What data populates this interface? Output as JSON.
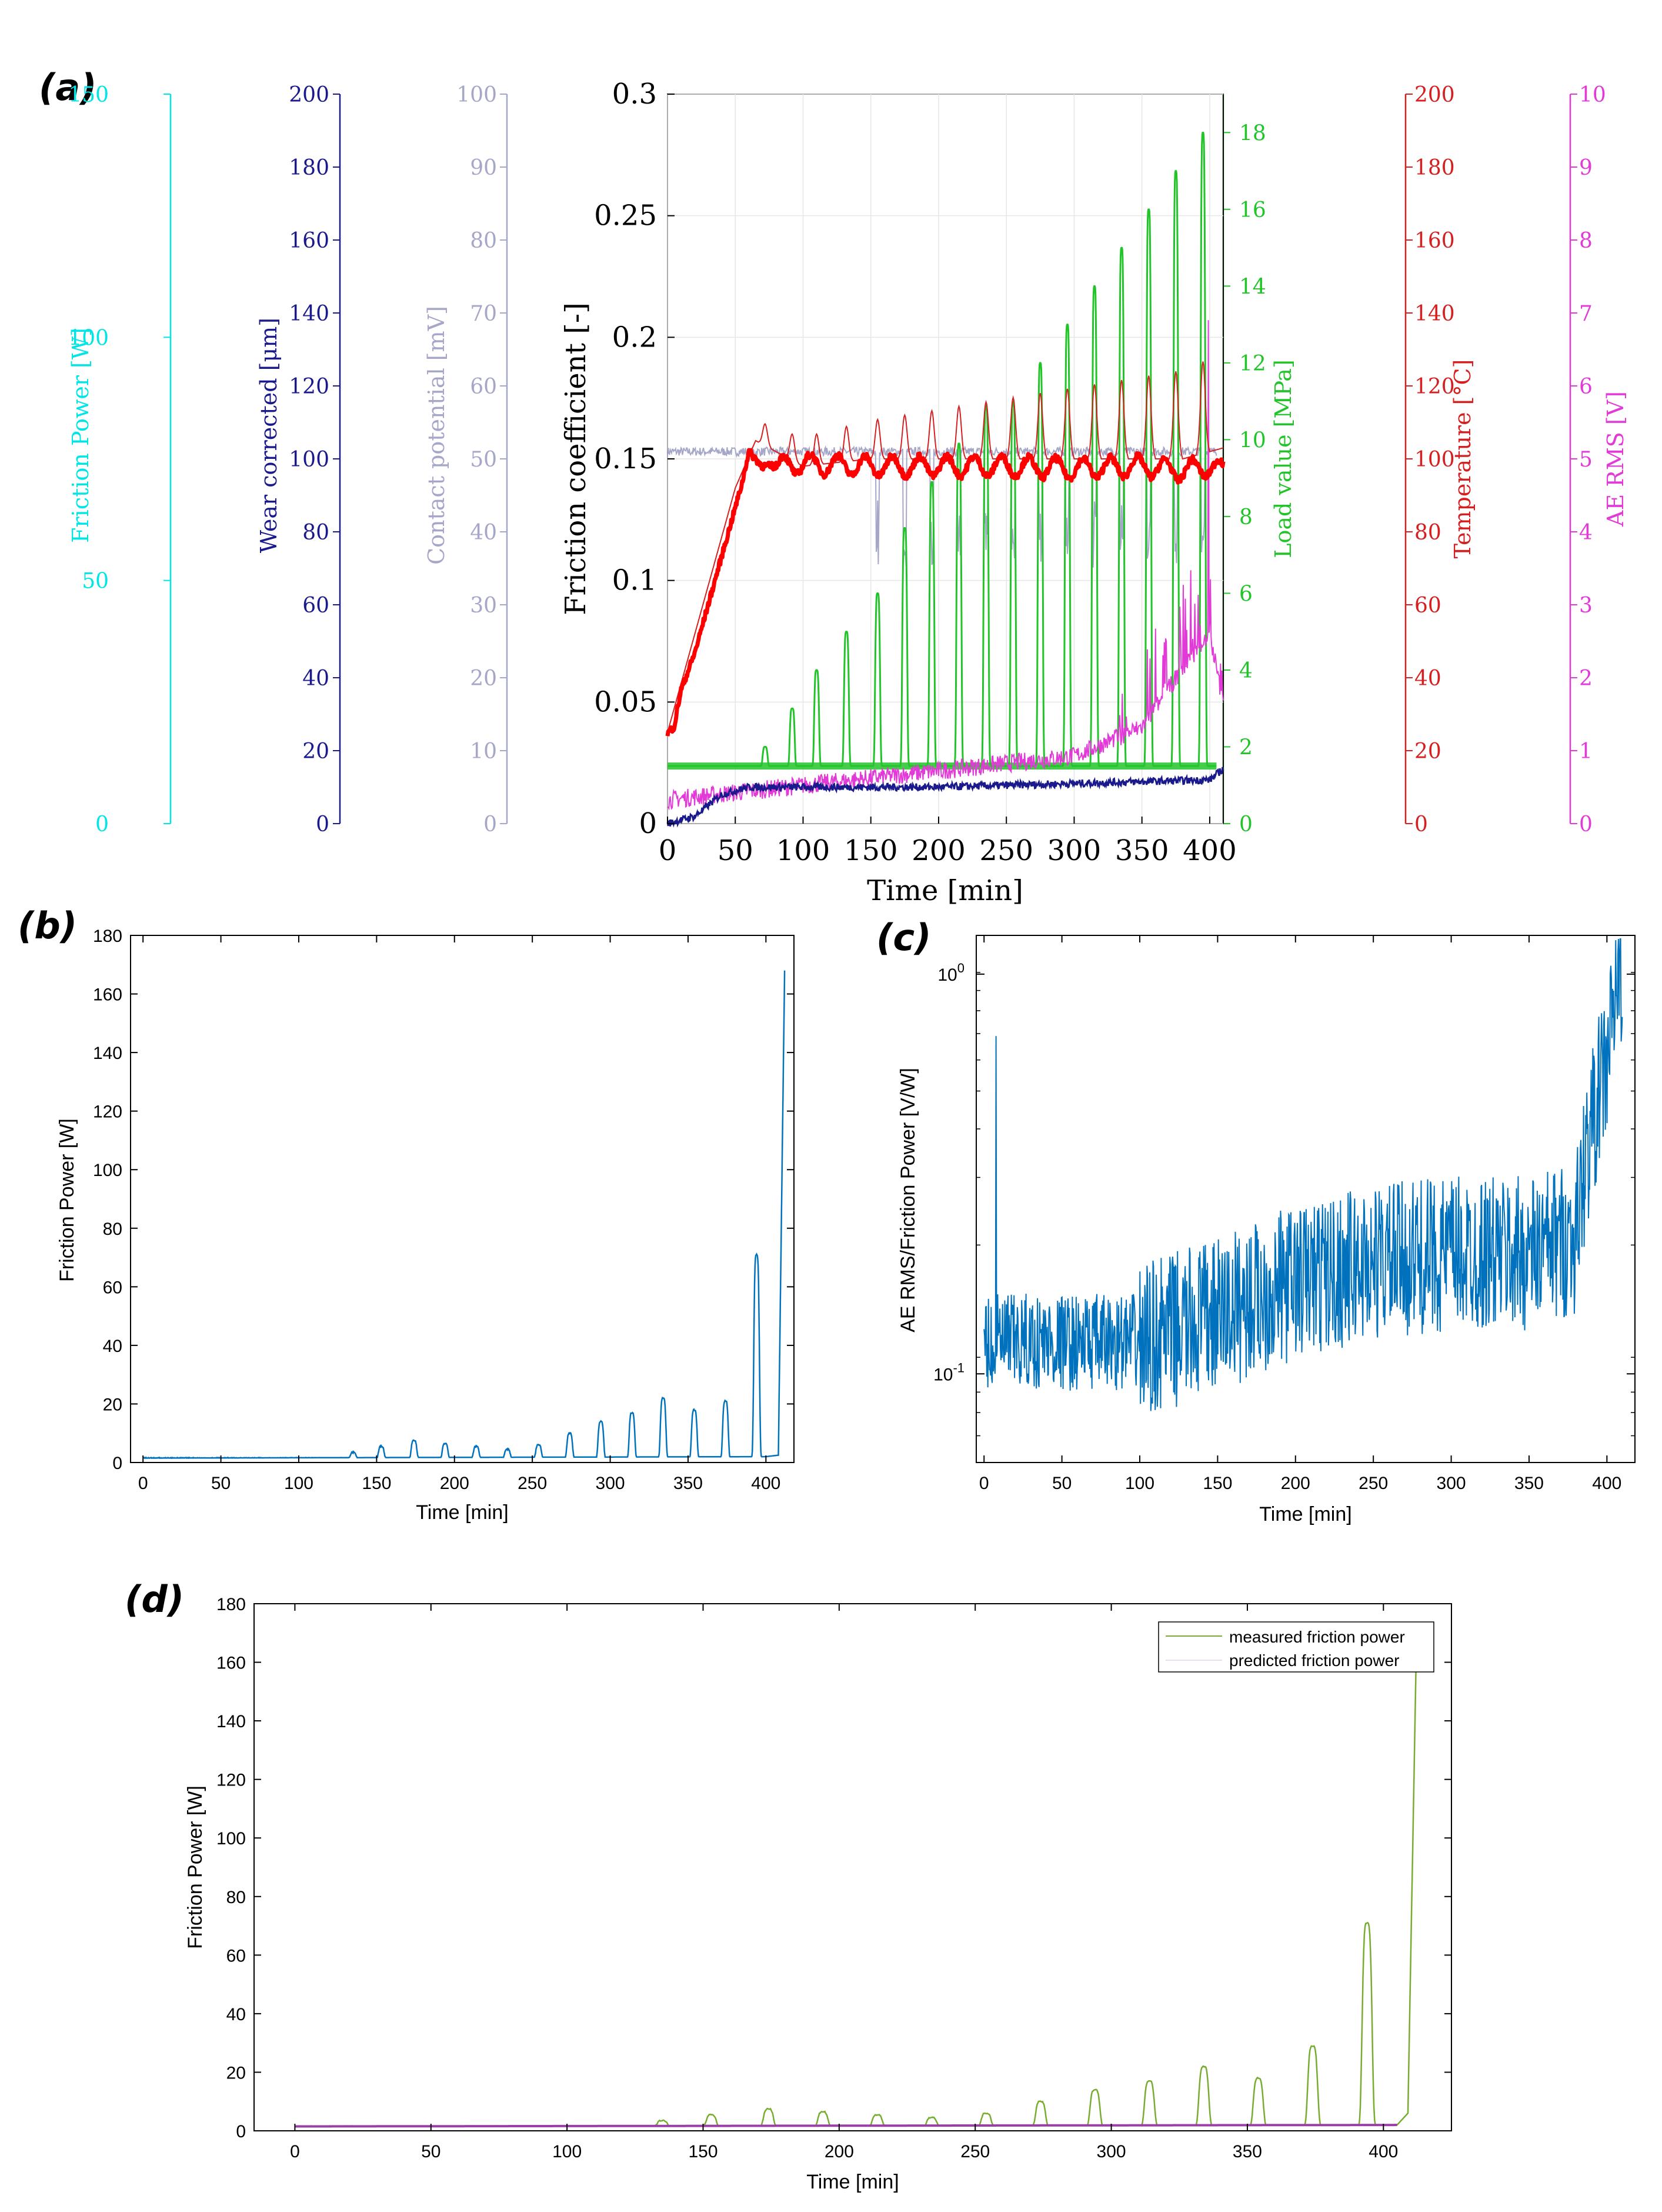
{
  "panels": {
    "a": {
      "label": "(a)"
    },
    "b": {
      "label": "(b)"
    },
    "c": {
      "label": "(c)"
    },
    "d": {
      "label": "(d)"
    }
  },
  "chart_data": [
    {
      "id": "a",
      "type": "line",
      "title": "",
      "xlabel": "Time [min]",
      "xlim": [
        0,
        410
      ],
      "xticks": [
        0,
        50,
        100,
        150,
        200,
        250,
        300,
        350,
        400
      ],
      "grid": true,
      "main_axis": {
        "label": "Friction coefficient [-]",
        "ylim": [
          0,
          0.3
        ],
        "ticks": [
          "0",
          "0.05",
          "0.1",
          "0.15",
          "0.2",
          "0.25",
          "0.3"
        ],
        "color": "#000000"
      },
      "extra_axes": [
        {
          "name": "friction_power",
          "label": "Friction Power [W]",
          "ylim": [
            0,
            150
          ],
          "ticks": [
            0,
            50,
            100,
            150
          ],
          "color": "#00e5e5",
          "side": "left"
        },
        {
          "name": "wear",
          "label": "Wear corrected [μm]",
          "ylim": [
            0,
            200
          ],
          "ticks": [
            0,
            20,
            40,
            60,
            80,
            100,
            120,
            140,
            160,
            180,
            200
          ],
          "color": "#1a1a8c",
          "side": "left"
        },
        {
          "name": "contact_potential",
          "label": "Contact potential [mV]",
          "ylim": [
            0,
            100
          ],
          "ticks": [
            0,
            10,
            20,
            30,
            40,
            50,
            60,
            70,
            80,
            90,
            100
          ],
          "color": "#a6a6c8",
          "side": "left"
        },
        {
          "name": "load",
          "label": "Load value [MPa]",
          "ylim": [
            0,
            19
          ],
          "ticks": [
            0,
            2,
            4,
            6,
            8,
            10,
            12,
            14,
            16,
            18
          ],
          "color": "#22c42a",
          "side": "right"
        },
        {
          "name": "temperature",
          "label": "Temperature [°C]",
          "ylim": [
            0,
            200
          ],
          "ticks": [
            0,
            20,
            40,
            60,
            80,
            100,
            120,
            140,
            160,
            180,
            200
          ],
          "color": "#d42020",
          "side": "right"
        },
        {
          "name": "ae_rms",
          "label": "AE RMS [V]",
          "ylim": [
            0,
            10
          ],
          "ticks": [
            0,
            1,
            2,
            3,
            4,
            5,
            6,
            7,
            8,
            9,
            10
          ],
          "color": "#e23ad7",
          "side": "right"
        }
      ],
      "series": [
        {
          "name": "Friction coefficient",
          "color": "#ff0000",
          "x": [
            0,
            5,
            10,
            20,
            30,
            40,
            50,
            55,
            60,
            70,
            80,
            100,
            150,
            200,
            250,
            300,
            350,
            380,
            390,
            400,
            410
          ],
          "values": [
            0.037,
            0.04,
            0.055,
            0.07,
            0.09,
            0.11,
            0.13,
            0.14,
            0.153,
            0.147,
            0.147,
            0.148,
            0.147,
            0.147,
            0.147,
            0.146,
            0.147,
            0.145,
            0.146,
            0.147,
            0.145
          ]
        },
        {
          "name": "Load value",
          "color": "#22c42a",
          "base_MPa": 1.5,
          "pulse_times": [
            72,
            92,
            110,
            132,
            155,
            175,
            195,
            215,
            235,
            255,
            275,
            295,
            315,
            335,
            355,
            375,
            395
          ],
          "pulse_peaks_MPa": [
            2.0,
            3.0,
            4.0,
            5.0,
            6.0,
            7.7,
            8.9,
            9.9,
            10.9,
            11.0,
            12.0,
            13.0,
            14.0,
            15.0,
            16.0,
            17.0,
            18.0
          ]
        },
        {
          "name": "Temperature",
          "color": "#d42020",
          "x": [
            0,
            50,
            65,
            100,
            150,
            200,
            250,
            300,
            350,
            380,
            400,
            410
          ],
          "values": [
            25,
            92,
            105,
            98,
            100,
            100,
            100,
            100,
            100,
            100,
            102,
            103
          ]
        },
        {
          "name": "Contact potential",
          "color": "#a6a6c8",
          "x": [
            0,
            50,
            100,
            200,
            300,
            400
          ],
          "values": [
            51,
            51,
            51,
            51,
            51,
            51
          ]
        },
        {
          "name": "Wear corrected",
          "color": "#1a1a8c",
          "x": [
            0,
            20,
            40,
            60,
            100,
            200,
            300,
            400,
            410
          ],
          "values": [
            0,
            2,
            8,
            10,
            10,
            10,
            11,
            12,
            15
          ]
        },
        {
          "name": "AE RMS",
          "color": "#e23ad7",
          "x": [
            0,
            100,
            200,
            300,
            350,
            380,
            400,
            410
          ],
          "values": [
            0.2,
            0.4,
            0.6,
            0.8,
            1.2,
            2.0,
            2.5,
            1.5
          ]
        }
      ]
    },
    {
      "id": "b",
      "type": "line",
      "title": "",
      "xlabel": "Time [min]",
      "ylabel": "Friction Power [W]",
      "xlim": [
        -8,
        418
      ],
      "ylim": [
        0,
        180
      ],
      "xticks": [
        0,
        50,
        100,
        150,
        200,
        250,
        300,
        350,
        400
      ],
      "yticks": [
        0,
        20,
        40,
        60,
        80,
        100,
        120,
        140,
        160,
        180
      ],
      "grid": false,
      "series": [
        {
          "name": "Friction Power",
          "color": "#0072bd",
          "base": 1.5,
          "x": [
            0,
            400,
            408,
            412
          ],
          "values": [
            1.5,
            2.0,
            2.5,
            168
          ],
          "pulse_times": [
            115,
            135,
            153,
            174,
            194,
            214,
            234,
            254,
            274,
            294,
            314,
            334,
            354,
            374,
            394
          ],
          "pulse_peaks": [
            1.5,
            3.5,
            5.5,
            7.5,
            6.5,
            5.5,
            4.5,
            6.0,
            10.0,
            14.0,
            17.0,
            22.0,
            18.0,
            21.0,
            71.0
          ]
        }
      ]
    },
    {
      "id": "c",
      "type": "line",
      "title": "",
      "xlabel": "Time [min]",
      "ylabel": "AE RMS/Friction Power [V/W]",
      "yscale": "log",
      "xlim": [
        -5,
        418
      ],
      "ylim": [
        0.06,
        1.25
      ],
      "xticks": [
        0,
        50,
        100,
        150,
        200,
        250,
        300,
        350,
        400
      ],
      "yticks": [
        "10^-1",
        "10^0"
      ],
      "grid": false,
      "series": [
        {
          "name": "AE RMS/Friction Power",
          "color": "#0072bd",
          "x": [
            0,
            50,
            100,
            150,
            200,
            250,
            300,
            350,
            380,
            400,
            410
          ],
          "values": [
            0.12,
            0.12,
            0.12,
            0.14,
            0.17,
            0.19,
            0.2,
            0.2,
            0.22,
            0.6,
            1.1
          ]
        }
      ]
    },
    {
      "id": "d",
      "type": "line",
      "title": "",
      "xlabel": "Time [min]",
      "ylabel": "Friction Power [W]",
      "xlim": [
        -15,
        425
      ],
      "ylim": [
        0,
        180
      ],
      "xticks": [
        0,
        50,
        100,
        150,
        200,
        250,
        300,
        350,
        400
      ],
      "yticks": [
        0,
        20,
        40,
        60,
        80,
        100,
        120,
        140,
        160,
        180
      ],
      "grid": false,
      "legend": "top-right",
      "series": [
        {
          "name": "measured friction power",
          "color": "#77ac30",
          "base": 1.5,
          "x": [
            0,
            405,
            409,
            412
          ],
          "values": [
            1.5,
            2.0,
            6.0,
            160
          ],
          "pulse_times": [
            115,
            135,
            153,
            174,
            194,
            214,
            234,
            254,
            274,
            294,
            314,
            334,
            354,
            374,
            394
          ],
          "pulse_peaks": [
            1.5,
            3.5,
            5.5,
            7.5,
            6.5,
            5.5,
            4.5,
            6.0,
            10.0,
            14.0,
            17.0,
            22.0,
            18.0,
            29.0,
            71.0
          ]
        },
        {
          "name": "predicted friction power",
          "color": "#9b3fa8",
          "base": 1.5,
          "x": [
            0,
            405
          ],
          "values": [
            1.5,
            2.0
          ],
          "pulse_times": [
            115,
            135,
            153,
            174,
            194,
            214,
            234,
            254,
            274,
            294,
            314,
            334,
            354,
            374,
            394
          ],
          "pulse_peaks": [
            1.5,
            3.5,
            6.5,
            8.0,
            7.5,
            6.5,
            5.5,
            7.0,
            11.0,
            14.0,
            16.0,
            18.0,
            17.0,
            26.0,
            58.0
          ]
        }
      ]
    }
  ]
}
